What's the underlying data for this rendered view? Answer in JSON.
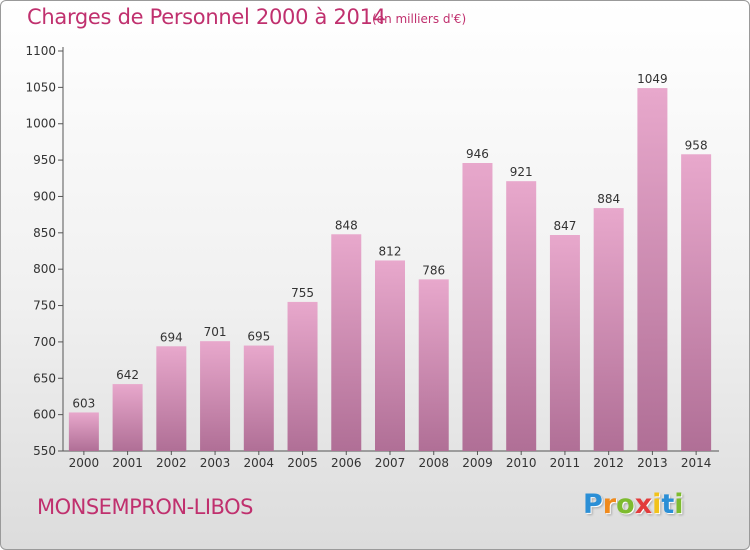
{
  "header": {
    "title": "Charges de Personnel 2000 à 2014",
    "unit": "(en milliers d'€)"
  },
  "footer": {
    "commune": "MONSEMPRON-LIBOS",
    "logo_letters": [
      "P",
      "r",
      "o",
      "x",
      "i",
      "t",
      "i"
    ],
    "logo_colors": [
      "#2b8fd6",
      "#f08a1c",
      "#7dbb2e",
      "#e23b3b",
      "#f2c21a",
      "#2b8fd6",
      "#7dbb2e"
    ]
  },
  "colors": {
    "accent": "#c0306e",
    "bar_top": "#e8a8cc",
    "bar_bottom": "#b06f96"
  },
  "chart_data": {
    "type": "bar",
    "title": "Charges de Personnel 2000 à 2014",
    "unit": "(en milliers d'€)",
    "categories": [
      "2000",
      "2001",
      "2002",
      "2003",
      "2004",
      "2005",
      "2006",
      "2007",
      "2008",
      "2009",
      "2010",
      "2011",
      "2012",
      "2013",
      "2014"
    ],
    "values": [
      603,
      642,
      694,
      701,
      695,
      755,
      848,
      812,
      786,
      946,
      921,
      847,
      884,
      1049,
      958
    ],
    "ylim": [
      550,
      1100
    ],
    "yticks": [
      550,
      600,
      650,
      700,
      750,
      800,
      850,
      900,
      950,
      1000,
      1050,
      1100
    ],
    "grid": false,
    "legend": "none"
  }
}
